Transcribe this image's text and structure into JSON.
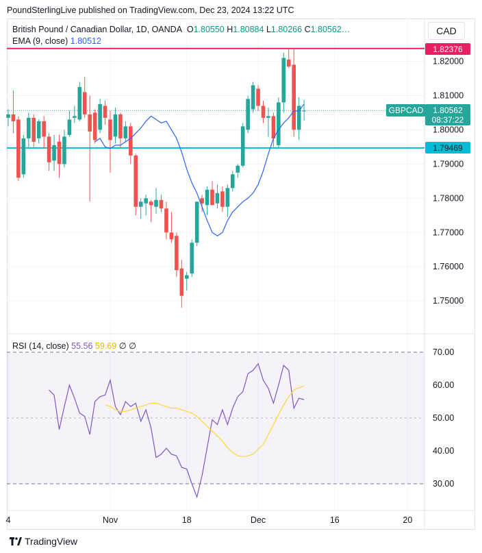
{
  "publisher_line": "PoundSterlingLive published on TradingView.com, Dec 23, 2024 13:22 UTC",
  "legend": {
    "symbol": "British Pound / Canadian Dollar, 1D, OANDA",
    "o_label": "O",
    "o": "1.80550",
    "h_label": "H",
    "h": "1.80884",
    "l_label": "L",
    "l": "1.80266",
    "c_label": "C",
    "c": "1.80562…",
    "ema_label": "EMA (9, close)",
    "ema_value": "1.80512",
    "rsi_label": "RSI (14, close)",
    "rsi_value": "55.56",
    "rsi_ma_value": "59.69",
    "rsi_extra_1": "∅",
    "rsi_extra_2": "∅"
  },
  "currency_button": "CAD",
  "price_badges": {
    "high_line": "1.82376",
    "symbol": "GBPCAD",
    "last_price": "1.80562",
    "countdown": "08:37:22",
    "low_line": "1.79469"
  },
  "footer": {
    "brand": "TradingView"
  },
  "colors": {
    "up": "#26a69a",
    "down": "#ef5350",
    "ema": "#2962ff",
    "rsi": "#7e57c2",
    "rsi_ma": "#fdd835",
    "high_line": "#e91e63",
    "low_line": "#00bcd4"
  },
  "chart_data": [
    {
      "type": "candlestick",
      "name": "GBPCAD daily",
      "y_ticks": [
        "1.82000",
        "1.81000",
        "1.80000",
        "1.79000",
        "1.78000",
        "1.77000",
        "1.76000",
        "1.75000"
      ],
      "ylim": [
        1.743,
        1.837
      ],
      "x_ticks": [
        {
          "label": "4",
          "i": 0
        },
        {
          "label": "Nov",
          "i": 20
        },
        {
          "label": "18",
          "i": 35
        },
        {
          "label": "Dec",
          "i": 49
        },
        {
          "label": "16",
          "i": 64
        },
        {
          "label": "20",
          "i": 78.3
        }
      ],
      "candles": [
        {
          "o": 1.8035,
          "h": 1.806,
          "l": 1.801,
          "c": 1.8045
        },
        {
          "o": 1.8045,
          "h": 1.8115,
          "l": 1.799,
          "c": 1.8025
        },
        {
          "o": 1.803,
          "h": 1.804,
          "l": 1.785,
          "c": 1.786
        },
        {
          "o": 1.787,
          "h": 1.7985,
          "l": 1.786,
          "c": 1.7975
        },
        {
          "o": 1.7975,
          "h": 1.805,
          "l": 1.7945,
          "c": 1.8035
        },
        {
          "o": 1.8035,
          "h": 1.8045,
          "l": 1.795,
          "c": 1.7965
        },
        {
          "o": 1.7975,
          "h": 1.803,
          "l": 1.796,
          "c": 1.8025
        },
        {
          "o": 1.8025,
          "h": 1.804,
          "l": 1.7945,
          "c": 1.798
        },
        {
          "o": 1.798,
          "h": 1.799,
          "l": 1.788,
          "c": 1.7905
        },
        {
          "o": 1.791,
          "h": 1.7985,
          "l": 1.788,
          "c": 1.7955
        },
        {
          "o": 1.7965,
          "h": 1.7985,
          "l": 1.786,
          "c": 1.79
        },
        {
          "o": 1.79,
          "h": 1.8,
          "l": 1.789,
          "c": 1.798
        },
        {
          "o": 1.7985,
          "h": 1.8055,
          "l": 1.798,
          "c": 1.803
        },
        {
          "o": 1.8035,
          "h": 1.807,
          "l": 1.802,
          "c": 1.804
        },
        {
          "o": 1.803,
          "h": 1.814,
          "l": 1.8025,
          "c": 1.8125
        },
        {
          "o": 1.811,
          "h": 1.8155,
          "l": 1.8035,
          "c": 1.8045
        },
        {
          "o": 1.8045,
          "h": 1.81,
          "l": 1.779,
          "c": 1.7995
        },
        {
          "o": 1.805,
          "h": 1.806,
          "l": 1.796,
          "c": 1.797
        },
        {
          "o": 1.8,
          "h": 1.809,
          "l": 1.799,
          "c": 1.8075
        },
        {
          "o": 1.807,
          "h": 1.8085,
          "l": 1.8015,
          "c": 1.8035
        },
        {
          "o": 1.803,
          "h": 1.8055,
          "l": 1.7875,
          "c": 1.797
        },
        {
          "o": 1.798,
          "h": 1.8065,
          "l": 1.796,
          "c": 1.8045
        },
        {
          "o": 1.8045,
          "h": 1.805,
          "l": 1.7945,
          "c": 1.7975
        },
        {
          "o": 1.7975,
          "h": 1.8025,
          "l": 1.7965,
          "c": 1.801
        },
        {
          "o": 1.801,
          "h": 1.802,
          "l": 1.79,
          "c": 1.7925
        },
        {
          "o": 1.7925,
          "h": 1.793,
          "l": 1.775,
          "c": 1.7775
        },
        {
          "o": 1.7775,
          "h": 1.78,
          "l": 1.774,
          "c": 1.779
        },
        {
          "o": 1.7785,
          "h": 1.781,
          "l": 1.775,
          "c": 1.78
        },
        {
          "o": 1.779,
          "h": 1.7795,
          "l": 1.773,
          "c": 1.778
        },
        {
          "o": 1.7775,
          "h": 1.783,
          "l": 1.7755,
          "c": 1.7795
        },
        {
          "o": 1.7795,
          "h": 1.781,
          "l": 1.776,
          "c": 1.777
        },
        {
          "o": 1.777,
          "h": 1.779,
          "l": 1.768,
          "c": 1.77
        },
        {
          "o": 1.77,
          "h": 1.776,
          "l": 1.767,
          "c": 1.768
        },
        {
          "o": 1.769,
          "h": 1.77,
          "l": 1.757,
          "c": 1.759
        },
        {
          "o": 1.7595,
          "h": 1.762,
          "l": 1.748,
          "c": 1.7515
        },
        {
          "o": 1.7565,
          "h": 1.7585,
          "l": 1.753,
          "c": 1.7575
        },
        {
          "o": 1.758,
          "h": 1.768,
          "l": 1.757,
          "c": 1.767
        },
        {
          "o": 1.767,
          "h": 1.779,
          "l": 1.766,
          "c": 1.779
        },
        {
          "o": 1.78,
          "h": 1.781,
          "l": 1.776,
          "c": 1.7785
        },
        {
          "o": 1.778,
          "h": 1.7835,
          "l": 1.775,
          "c": 1.7825
        },
        {
          "o": 1.7825,
          "h": 1.785,
          "l": 1.778,
          "c": 1.778
        },
        {
          "o": 1.7785,
          "h": 1.784,
          "l": 1.777,
          "c": 1.7815
        },
        {
          "o": 1.782,
          "h": 1.7835,
          "l": 1.776,
          "c": 1.7775
        },
        {
          "o": 1.7775,
          "h": 1.784,
          "l": 1.7745,
          "c": 1.783
        },
        {
          "o": 1.783,
          "h": 1.788,
          "l": 1.782,
          "c": 1.787
        },
        {
          "o": 1.7875,
          "h": 1.79,
          "l": 1.786,
          "c": 1.7895
        },
        {
          "o": 1.7895,
          "h": 1.802,
          "l": 1.789,
          "c": 1.801
        },
        {
          "o": 1.8,
          "h": 1.81,
          "l": 1.799,
          "c": 1.809
        },
        {
          "o": 1.806,
          "h": 1.814,
          "l": 1.805,
          "c": 1.813
        },
        {
          "o": 1.812,
          "h": 1.813,
          "l": 1.8055,
          "c": 1.807
        },
        {
          "o": 1.807,
          "h": 1.8085,
          "l": 1.802,
          "c": 1.8035
        },
        {
          "o": 1.8035,
          "h": 1.8065,
          "l": 1.798,
          "c": 1.804
        },
        {
          "o": 1.804,
          "h": 1.805,
          "l": 1.795,
          "c": 1.7975
        },
        {
          "o": 1.7955,
          "h": 1.8095,
          "l": 1.7945,
          "c": 1.808
        },
        {
          "o": 1.808,
          "h": 1.8225,
          "l": 1.805,
          "c": 1.821
        },
        {
          "o": 1.8205,
          "h": 1.8235,
          "l": 1.818,
          "c": 1.8185
        },
        {
          "o": 1.819,
          "h": 1.8238,
          "l": 1.798,
          "c": 1.8
        },
        {
          "o": 1.8,
          "h": 1.8095,
          "l": 1.797,
          "c": 1.807
        },
        {
          "o": 1.8055,
          "h": 1.8088,
          "l": 1.8027,
          "c": 1.8056
        }
      ],
      "ema": [
        1.7965,
        1.7975,
        1.795,
        1.7945,
        1.7955,
        1.7955,
        1.7965,
        1.7975,
        1.799,
        1.8005,
        1.8025,
        1.804,
        1.803,
        1.802,
        1.8025,
        1.8,
        1.7975,
        1.7935,
        1.7885,
        1.7845,
        1.7815,
        1.7775,
        1.7735,
        1.77,
        1.769,
        1.77,
        1.7735,
        1.776,
        1.7775,
        1.779,
        1.78,
        1.7815,
        1.784,
        1.788,
        1.793,
        1.7975,
        1.8,
        1.802,
        1.8035,
        1.8055,
        1.8055,
        1.8075
      ]
    },
    {
      "type": "line",
      "name": "RSI (14, close)",
      "y_ticks": [
        "70.00",
        "60.00",
        "50.00",
        "40.00",
        "30.00"
      ],
      "ylim": [
        24,
        75
      ],
      "bands": {
        "upper": 70,
        "middle": 50,
        "lower": 30
      },
      "rsi": [
        58.5,
        57.0,
        46.5,
        53.5,
        60.0,
        56.0,
        51.5,
        50.5,
        45.0,
        55.0,
        56.5,
        57.0,
        61.5,
        53.5,
        51.0,
        55.0,
        53.5,
        54.5,
        49.0,
        52.5,
        47.0,
        38.0,
        39.0,
        40.8,
        39.0,
        38.5,
        35.0,
        34.5,
        30.0,
        26.0,
        32.5,
        41.0,
        49.5,
        48.0,
        52.5,
        48.0,
        53.0,
        56.5,
        58.0,
        63.5,
        64.5,
        66.5,
        61.5,
        59.0,
        54.5,
        60.0,
        66.0,
        64.5,
        53.0,
        56.0,
        55.6
      ],
      "rsi_ma": [
        54.0,
        53.5,
        52.5,
        52.0,
        52.0,
        52.5,
        53.0,
        53.5,
        54.0,
        54.5,
        54.5,
        54.0,
        53.5,
        53.0,
        53.0,
        52.5,
        52.0,
        51.5,
        50.5,
        49.0,
        47.5,
        46.0,
        44.5,
        43.0,
        41.0,
        39.5,
        38.5,
        38.3,
        38.5,
        39.0,
        40.5,
        42.0,
        45.0,
        48.0,
        51.0,
        54.0,
        56.5,
        58.5,
        59.2,
        59.7
      ]
    }
  ]
}
